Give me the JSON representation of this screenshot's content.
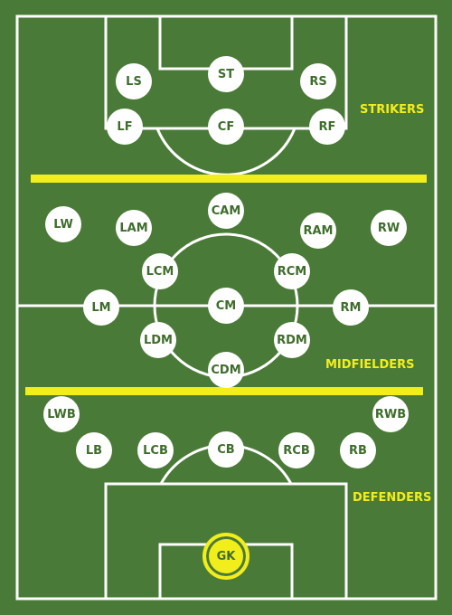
{
  "colors": {
    "pitch": "#4a7a37",
    "lines": "#ffffff",
    "accent": "#f2ee1c",
    "text": "#3f6d2c"
  },
  "zones": {
    "strikers": "STRIKERS",
    "midfielders": "MIDFIELDERS",
    "defenders": "DEFENDERS"
  },
  "positions": {
    "ls": "LS",
    "st": "ST",
    "rs": "RS",
    "lf": "LF",
    "cf": "CF",
    "rf": "RF",
    "cam": "CAM",
    "lw": "LW",
    "lam": "LAM",
    "ram": "RAM",
    "rw": "RW",
    "lcm": "LCM",
    "rcm": "RCM",
    "lm": "LM",
    "cm": "CM",
    "rm": "RM",
    "ldm": "LDM",
    "rdm": "RDM",
    "cdm": "CDM",
    "lwb": "LWB",
    "rwb": "RWB",
    "lb": "LB",
    "lcb": "LCB",
    "cb": "CB",
    "rcb": "RCB",
    "rb": "RB",
    "gk": "GK"
  }
}
